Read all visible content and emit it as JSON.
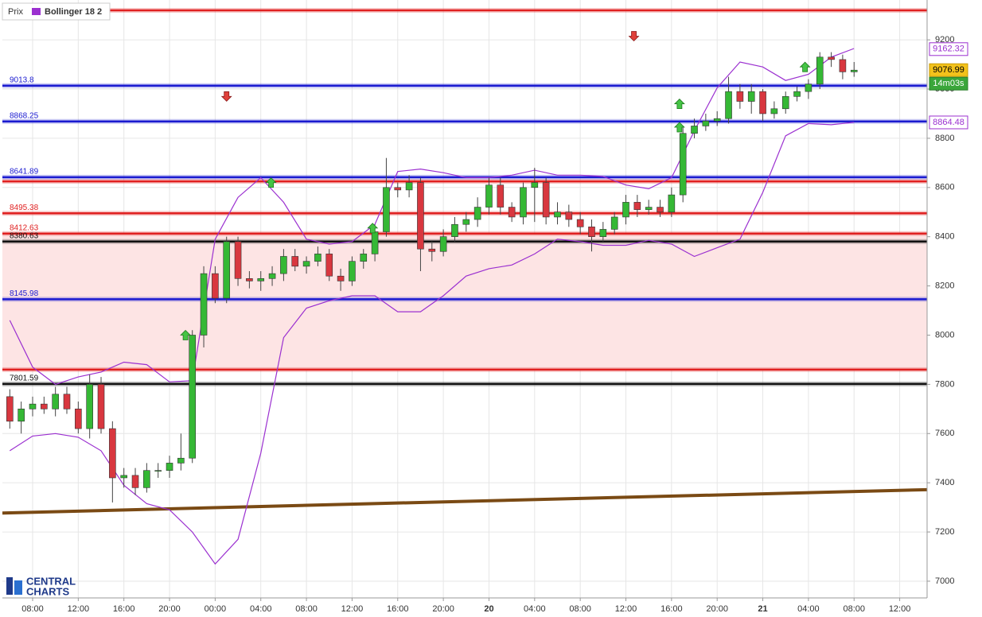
{
  "chart_data": {
    "type": "candlestick",
    "name": "Prix",
    "x": [
      -2,
      -1,
      0,
      1,
      2,
      3,
      4,
      5,
      6,
      7,
      8,
      9,
      10,
      11,
      12,
      13,
      14,
      15,
      16,
      17,
      18,
      19,
      20,
      21,
      22,
      23,
      24,
      25,
      26,
      27,
      28,
      29,
      30,
      31,
      32,
      33,
      34,
      35,
      36,
      37,
      38,
      39,
      40,
      41,
      42,
      43,
      44,
      45,
      46,
      47,
      48,
      49,
      50,
      51,
      52,
      53,
      54,
      55,
      56,
      57,
      58,
      59,
      60,
      61,
      62,
      63,
      64,
      65,
      66,
      67,
      68,
      69,
      70,
      71,
      72
    ],
    "open": [
      7750,
      7650,
      7700,
      7720,
      7700,
      7760,
      7700,
      7620,
      7800,
      7620,
      7420,
      7430,
      7380,
      7450,
      7450,
      7480,
      7500,
      8000,
      8250,
      8150,
      8380,
      8230,
      8220,
      8230,
      8250,
      8320,
      8280,
      8300,
      8330,
      8240,
      8220,
      8300,
      8330,
      8420,
      8600,
      8590,
      8620,
      8350,
      8340,
      8400,
      8450,
      8470,
      8520,
      8610,
      8520,
      8480,
      8600,
      8620,
      8480,
      8500,
      8470,
      8440,
      8400,
      8430,
      8480,
      8540,
      8510,
      8520,
      8500,
      8570,
      8820,
      8850,
      8870,
      8880,
      8990,
      8950,
      8990,
      8900,
      8920,
      8970,
      8990,
      9020,
      9130,
      9120,
      9070
    ],
    "high": [
      7780,
      7730,
      7750,
      7750,
      7790,
      7790,
      7730,
      7840,
      7830,
      7650,
      7460,
      7460,
      7480,
      7480,
      7510,
      7600,
      8020,
      8280,
      8280,
      8400,
      8400,
      8260,
      8260,
      8280,
      8350,
      8350,
      8320,
      8360,
      8350,
      8270,
      8320,
      8350,
      8450,
      8720,
      8620,
      8650,
      8640,
      8380,
      8430,
      8480,
      8500,
      8560,
      8640,
      8640,
      8540,
      8620,
      8680,
      8640,
      8540,
      8530,
      8500,
      8470,
      8460,
      8500,
      8570,
      8570,
      8550,
      8550,
      8600,
      8850,
      8880,
      8900,
      8910,
      9050,
      9020,
      9020,
      9000,
      8950,
      8990,
      9010,
      9040,
      9150,
      9150,
      9140,
      9110
    ],
    "low": [
      7620,
      7600,
      7670,
      7680,
      7670,
      7680,
      7600,
      7580,
      7600,
      7320,
      7380,
      7350,
      7360,
      7420,
      7420,
      7450,
      7480,
      7950,
      8130,
      8130,
      8200,
      8190,
      8180,
      8200,
      8220,
      8260,
      8250,
      8280,
      8220,
      8180,
      8200,
      8270,
      8300,
      8400,
      8560,
      8560,
      8260,
      8300,
      8320,
      8380,
      8420,
      8440,
      8490,
      8490,
      8460,
      8450,
      8460,
      8450,
      8450,
      8440,
      8410,
      8340,
      8380,
      8410,
      8450,
      8480,
      8490,
      8480,
      8480,
      8540,
      8800,
      8830,
      8850,
      8860,
      8920,
      8900,
      8870,
      8880,
      8900,
      8950,
      8960,
      9000,
      9090,
      9040,
      9050
    ],
    "close": [
      7650,
      7700,
      7720,
      7700,
      7760,
      7700,
      7620,
      7800,
      7620,
      7420,
      7430,
      7380,
      7450,
      7450,
      7480,
      7500,
      8000,
      8250,
      8150,
      8380,
      8230,
      8220,
      8230,
      8250,
      8320,
      8280,
      8300,
      8330,
      8240,
      8220,
      8300,
      8330,
      8420,
      8600,
      8590,
      8620,
      8350,
      8340,
      8400,
      8450,
      8470,
      8520,
      8610,
      8520,
      8480,
      8600,
      8620,
      8480,
      8500,
      8470,
      8440,
      8400,
      8430,
      8480,
      8540,
      8510,
      8520,
      8500,
      8570,
      8820,
      8850,
      8870,
      8880,
      8990,
      8950,
      8990,
      8900,
      8920,
      8970,
      8990,
      9020,
      9130,
      9120,
      9070,
      9076.99
    ],
    "up_color": "#35b835",
    "down_color": "#d8373f",
    "bands": {
      "name": "Bollinger 18 2",
      "color": "#9b30d0",
      "x": [
        -2,
        0,
        2,
        4,
        6,
        8,
        10,
        12,
        14,
        16,
        18,
        20,
        22,
        24,
        26,
        28,
        30,
        32,
        34,
        36,
        38,
        40,
        42,
        44,
        46,
        48,
        50,
        52,
        54,
        56,
        58,
        60,
        62,
        64,
        66,
        68,
        70,
        72
      ],
      "upper": [
        8060,
        7870,
        7800,
        7830,
        7850,
        7890,
        7880,
        7810,
        7815,
        8390,
        8560,
        8640,
        8540,
        8390,
        8370,
        8380,
        8450,
        8665,
        8675,
        8660,
        8640,
        8640,
        8650,
        8670,
        8650,
        8650,
        8645,
        8610,
        8595,
        8640,
        8830,
        9005,
        9110,
        9090,
        9035,
        9060,
        9130,
        9165
      ],
      "lower": [
        7530,
        7590,
        7600,
        7585,
        7530,
        7390,
        7315,
        7290,
        7200,
        7070,
        7170,
        7520,
        7990,
        8110,
        8140,
        8160,
        8160,
        8095,
        8095,
        8160,
        8240,
        8270,
        8285,
        8330,
        8390,
        8380,
        8365,
        8365,
        8385,
        8370,
        8320,
        8355,
        8390,
        8580,
        8810,
        8860,
        8855,
        8865
      ]
    },
    "levels": [
      {
        "value": 9320,
        "color": "#e02020",
        "show_label": false
      },
      {
        "value": 9013.8,
        "color": "#1a1ad0",
        "show_label": true
      },
      {
        "value": 8868.25,
        "color": "#1a1ad0",
        "show_label": true
      },
      {
        "value": 8641.89,
        "color": "#1a1ad0",
        "show_label": true
      },
      {
        "value": 8625,
        "color": "#e02020",
        "show_label": false
      },
      {
        "value": 8495.38,
        "color": "#e02020",
        "show_label": true
      },
      {
        "value": 8412.63,
        "color": "#e02020",
        "show_label": true
      },
      {
        "value": 8380.63,
        "color": "#111111",
        "show_label": true
      },
      {
        "value": 8145.98,
        "color": "#1a1ad0",
        "show_label": true
      },
      {
        "value": 7860,
        "color": "#e02020",
        "show_label": false
      },
      {
        "value": 7801.59,
        "color": "#111111",
        "show_label": true
      }
    ],
    "zone": {
      "from": 7860,
      "to": 8412.63,
      "color": "#fde4e4"
    },
    "trendline": {
      "x": [
        -2.65,
        78.4
      ],
      "values": [
        7277,
        7372
      ],
      "color": "#7a4a14"
    },
    "signals": [
      {
        "x": 13.4,
        "value": 8000,
        "dir": "up"
      },
      {
        "x": 20.9,
        "value": 8620,
        "dir": "up"
      },
      {
        "x": 29.8,
        "value": 8435,
        "dir": "up"
      },
      {
        "x": 56.7,
        "value": 8940,
        "dir": "up"
      },
      {
        "x": 56.7,
        "value": 8845,
        "dir": "up"
      },
      {
        "x": 67.7,
        "value": 9090,
        "dir": "up"
      },
      {
        "x": 17.0,
        "value": 8970,
        "dir": "down"
      },
      {
        "x": 52.7,
        "value": 9215,
        "dir": "down"
      }
    ],
    "price_tags": [
      {
        "value": 9162.32,
        "style": "band"
      },
      {
        "value": 9076.99,
        "style": "last"
      },
      {
        "value": 8864.48,
        "style": "band"
      }
    ],
    "countdown": "14m03s",
    "xlim": [
      -2.65,
      78.4
    ],
    "ylim": [
      6932,
      9362
    ],
    "xticks": [
      {
        "value": 0,
        "label": "08:00"
      },
      {
        "value": 4,
        "label": "12:00"
      },
      {
        "value": 8,
        "label": "16:00"
      },
      {
        "value": 12,
        "label": "20:00"
      },
      {
        "value": 16,
        "label": "00:00"
      },
      {
        "value": 20,
        "label": "04:00"
      },
      {
        "value": 24,
        "label": "08:00"
      },
      {
        "value": 28,
        "label": "12:00"
      },
      {
        "value": 32,
        "label": "16:00"
      },
      {
        "value": 36,
        "label": "20:00"
      },
      {
        "value": 40,
        "label": "20"
      },
      {
        "value": 44,
        "label": "04:00"
      },
      {
        "value": 48,
        "label": "08:00"
      },
      {
        "value": 52,
        "label": "12:00"
      },
      {
        "value": 56,
        "label": "16:00"
      },
      {
        "value": 60,
        "label": "20:00"
      },
      {
        "value": 64,
        "label": "21"
      },
      {
        "value": 68,
        "label": "04:00"
      },
      {
        "value": 72,
        "label": "08:00"
      },
      {
        "value": 76,
        "label": "12:00"
      }
    ],
    "yticks": [
      7000,
      7200,
      7400,
      7600,
      7800,
      8000,
      8200,
      8400,
      8600,
      8800,
      9000,
      9200
    ],
    "grid": true,
    "logo": [
      "CENTRAL",
      "CHARTS"
    ]
  }
}
